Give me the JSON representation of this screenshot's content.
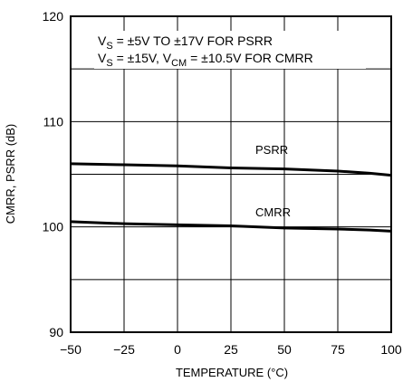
{
  "chart_data": {
    "type": "line",
    "xlabel": "TEMPERATURE (°C)",
    "ylabel": "CMRR, PSRR (dB)",
    "xlim": [
      -50,
      100
    ],
    "ylim": [
      90,
      120
    ],
    "x_ticks": [
      -50,
      -25,
      0,
      25,
      50,
      75,
      100
    ],
    "y_ticks": [
      90,
      100,
      110,
      120
    ],
    "grid": true,
    "colors": {
      "line": "#000000",
      "grid": "#000000",
      "background": "#ffffff"
    },
    "annotations": {
      "line1": {
        "prefix": "V",
        "sub": "S",
        "rest": " = ±5V TO ±17V FOR PSRR"
      },
      "line2": {
        "prefix": "V",
        "sub": "S",
        "mid": " = ±15V, V",
        "sub2": "CM",
        "rest": " = ±10.5V FOR CMRR"
      }
    },
    "series": [
      {
        "name": "PSRR",
        "x": [
          -50,
          -25,
          0,
          25,
          50,
          75,
          90,
          100
        ],
        "values": [
          106.0,
          105.9,
          105.8,
          105.6,
          105.5,
          105.3,
          105.1,
          104.9
        ]
      },
      {
        "name": "CMRR",
        "x": [
          -50,
          -25,
          0,
          25,
          50,
          75,
          90,
          100
        ],
        "values": [
          100.5,
          100.3,
          100.2,
          100.1,
          99.9,
          99.8,
          99.7,
          99.6
        ]
      }
    ]
  }
}
